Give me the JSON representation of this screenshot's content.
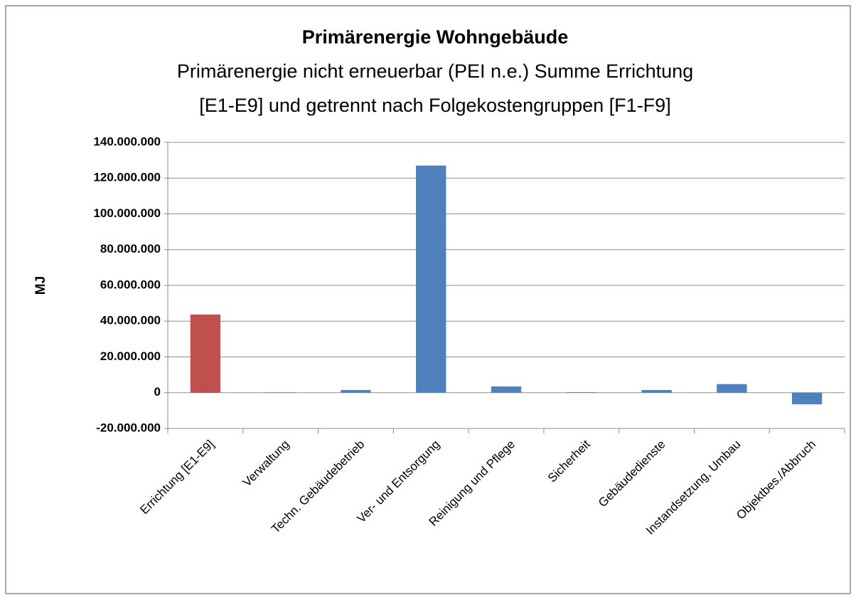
{
  "chart_data": {
    "type": "bar",
    "title": "Primärenergie Wohngebäude",
    "subtitle": [
      "Primärenergie nicht erneuerbar (PEI n.e.) Summe Errichtung",
      "[E1-E9] und getrennt nach Folgekostengruppen [F1-F9]"
    ],
    "y_label": "MJ",
    "categories": [
      "Errichtung [E1-E9]",
      "Verwaltung",
      "Techn. Gebäudebetrieb",
      "Ver- und Entsorgung",
      "Reinigung und Pflege",
      "Sicherheit",
      "Gebäudedienste",
      "Instandsetzung, Umbau",
      "Objektbes./Abbruch"
    ],
    "values": [
      43700000,
      200000,
      1500000,
      127000000,
      3500000,
      300000,
      1500000,
      4800000,
      -6500000
    ],
    "colors": [
      "#c0504d",
      "#4f81bd",
      "#4f81bd",
      "#4f81bd",
      "#4f81bd",
      "#4f81bd",
      "#4f81bd",
      "#4f81bd",
      "#4f81bd"
    ],
    "ylim": [
      -20000000,
      140000000
    ],
    "yticks": [
      {
        "value": -20000000,
        "label": "-20.000.000"
      },
      0,
      {
        "value": 20000000,
        "label": "20.000.000"
      },
      {
        "value": 40000000,
        "label": "40.000.000"
      },
      {
        "value": 60000000,
        "label": "60.000.000"
      },
      {
        "value": 80000000,
        "label": "80.000.000"
      },
      {
        "value": 100000000,
        "label": "100.000.000"
      },
      {
        "value": 120000000,
        "label": "120.000.000"
      },
      {
        "value": 140000000,
        "label": "140.000.000"
      }
    ],
    "grid": true
  }
}
